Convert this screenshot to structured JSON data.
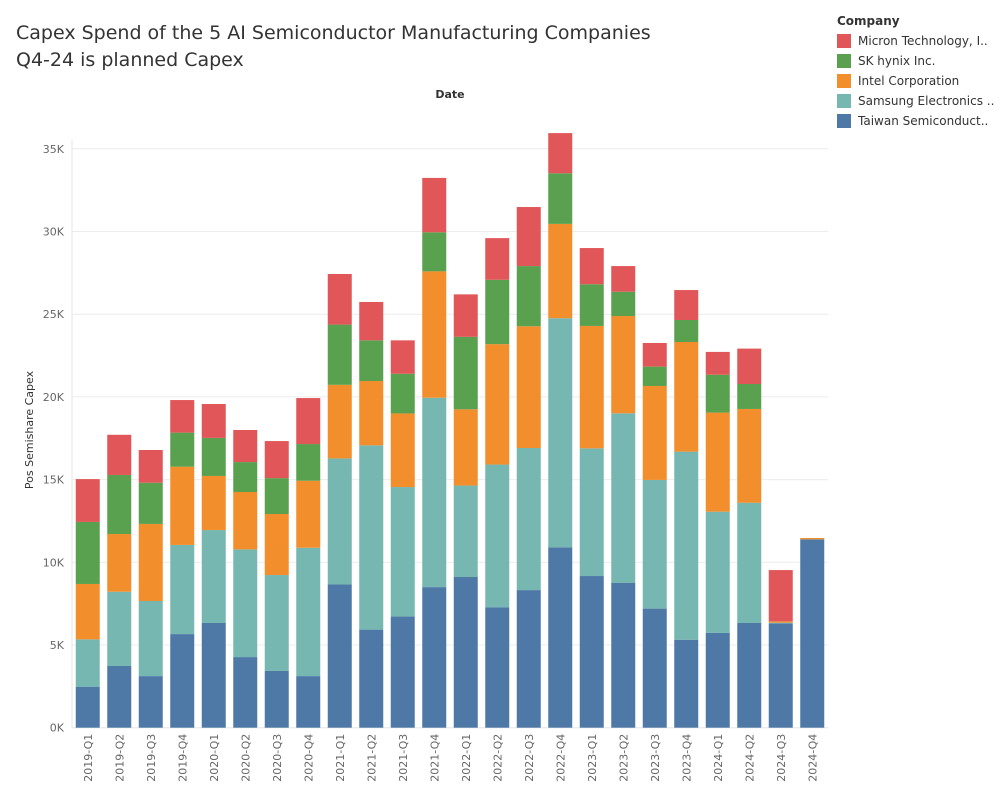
{
  "title_lines": [
    "Capex Spend of the 5 AI Semiconductor Manufacturing Companies",
    "Q4-24 is planned Capex"
  ],
  "chart_data": {
    "type": "bar",
    "stacked": true,
    "title": "Capex Spend of the 5 AI Semiconductor Manufacturing Companies\nQ4-24 is planned Capex",
    "xlabel": "Date",
    "ylabel": "Pos Semishare Capex",
    "ylim": [
      0,
      37000
    ],
    "yticks": [
      0,
      5000,
      10000,
      15000,
      20000,
      25000,
      30000,
      35000
    ],
    "ytick_labels": [
      "0K",
      "5K",
      "10K",
      "15K",
      "20K",
      "25K",
      "30K",
      "35K"
    ],
    "grid": true,
    "legend_title": "Company",
    "legend_position": "top-right",
    "categories": [
      "2019-Q1",
      "2019-Q2",
      "2019-Q3",
      "2019-Q4",
      "2020-Q1",
      "2020-Q2",
      "2020-Q3",
      "2020-Q4",
      "2021-Q1",
      "2021-Q2",
      "2021-Q3",
      "2021-Q4",
      "2022-Q1",
      "2022-Q2",
      "2022-Q3",
      "2022-Q4",
      "2023-Q1",
      "2023-Q2",
      "2023-Q3",
      "2023-Q4",
      "2024-Q1",
      "2024-Q2",
      "2024-Q3",
      "2024-Q4"
    ],
    "series": [
      {
        "name": "Taiwan Semiconduct..",
        "color": "#4e79a7",
        "values": [
          2480,
          3730,
          3120,
          5660,
          6330,
          4270,
          3430,
          3120,
          8660,
          5930,
          6720,
          8500,
          9110,
          7270,
          8320,
          10910,
          9170,
          8750,
          7200,
          5320,
          5730,
          6330,
          6310,
          11390
        ]
      },
      {
        "name": "Samsung Electronics ..",
        "color": "#76b7b2",
        "values": [
          2860,
          4490,
          4540,
          5390,
          5620,
          6510,
          5800,
          7760,
          7620,
          11140,
          7830,
          11450,
          5530,
          8640,
          8590,
          13850,
          7720,
          10260,
          7780,
          11370,
          7330,
          7270,
          40,
          0
        ]
      },
      {
        "name": "Intel Corporation",
        "color": "#f28e2b",
        "values": [
          3350,
          3490,
          4660,
          4730,
          3270,
          3470,
          3690,
          4050,
          4450,
          3890,
          4450,
          7640,
          4610,
          7280,
          7360,
          5700,
          7400,
          5880,
          5680,
          6630,
          5990,
          5670,
          80,
          80
        ]
      },
      {
        "name": "SK hynix Inc.",
        "color": "#59a14f",
        "values": [
          3750,
          3570,
          2490,
          2060,
          2300,
          1810,
          2170,
          2220,
          3640,
          2460,
          2400,
          2360,
          4380,
          3890,
          3640,
          3060,
          2520,
          1470,
          1170,
          1330,
          2290,
          1510,
          0,
          0
        ]
      },
      {
        "name": "Micron Technology, I..",
        "color": "#e15759",
        "values": [
          2590,
          2430,
          1980,
          1970,
          2050,
          1940,
          2240,
          2780,
          3060,
          2320,
          2020,
          3290,
          2570,
          2520,
          3570,
          2430,
          2190,
          1550,
          1430,
          1810,
          1380,
          2140,
          3100,
          0
        ]
      }
    ]
  }
}
